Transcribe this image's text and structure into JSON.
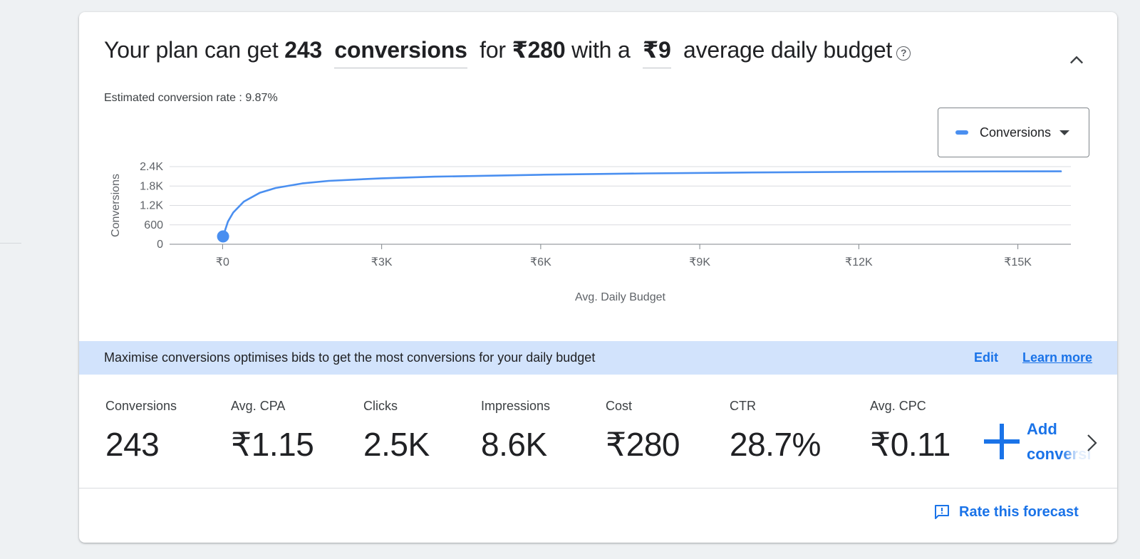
{
  "headline": {
    "prefix": "Your plan can get",
    "count": "243",
    "metric_dropdown": "conversions",
    "for_text": "for",
    "cost": "₹280",
    "with_text": "with a",
    "budget_dropdown": "₹9",
    "suffix": "average daily budget",
    "help_glyph": "?"
  },
  "estimated_rate": "Estimated conversion rate : 9.87%",
  "series_selector": {
    "label": "Conversions",
    "color": "#4a8ff0"
  },
  "chart_data": {
    "type": "line",
    "xlabel": "Avg. Daily Budget",
    "ylabel": "Conversions",
    "xlim": [
      -1000,
      16000
    ],
    "ylim": [
      0,
      2400
    ],
    "x_ticks": [
      0,
      3000,
      6000,
      9000,
      12000,
      15000
    ],
    "x_tick_labels": [
      "₹0",
      "₹3K",
      "₹6K",
      "₹9K",
      "₹12K",
      "₹15K"
    ],
    "y_ticks": [
      0,
      600,
      1200,
      1800,
      2400
    ],
    "y_tick_labels": [
      "0",
      "600",
      "1.2K",
      "1.8K",
      "2.4K"
    ],
    "grid": true,
    "series": [
      {
        "color": "#4a8ff0",
        "x": [
          9,
          100,
          200,
          400,
          700,
          1000,
          1500,
          2000,
          3000,
          4000,
          6000,
          8000,
          10000,
          12000,
          14000,
          16000
        ],
        "y": [
          243,
          700,
          980,
          1320,
          1590,
          1740,
          1880,
          1960,
          2040,
          2090,
          2150,
          2190,
          2220,
          2240,
          2250,
          2255
        ]
      }
    ],
    "highlight_point": {
      "x": 9,
      "y": 243
    }
  },
  "info_bar": {
    "message": "Maximise conversions optimises bids to get the most conversions for your daily budget",
    "edit": "Edit",
    "learn_more": "Learn more"
  },
  "metrics": [
    {
      "label": "Conversions",
      "value": "243"
    },
    {
      "label": "Avg. CPA",
      "value": "₹1.15"
    },
    {
      "label": "Clicks",
      "value": "2.5K"
    },
    {
      "label": "Impressions",
      "value": "8.6K"
    },
    {
      "label": "Cost",
      "value": "₹280"
    },
    {
      "label": "CTR",
      "value": "28.7%"
    },
    {
      "label": "Avg. CPC",
      "value": "₹0.11"
    }
  ],
  "add_metrics": "Add conversion metrics",
  "rate_forecast": "Rate this forecast",
  "colors": {
    "accent": "#1a73e8",
    "info_bar_bg": "#d2e3fc",
    "series": "#4a8ff0"
  }
}
